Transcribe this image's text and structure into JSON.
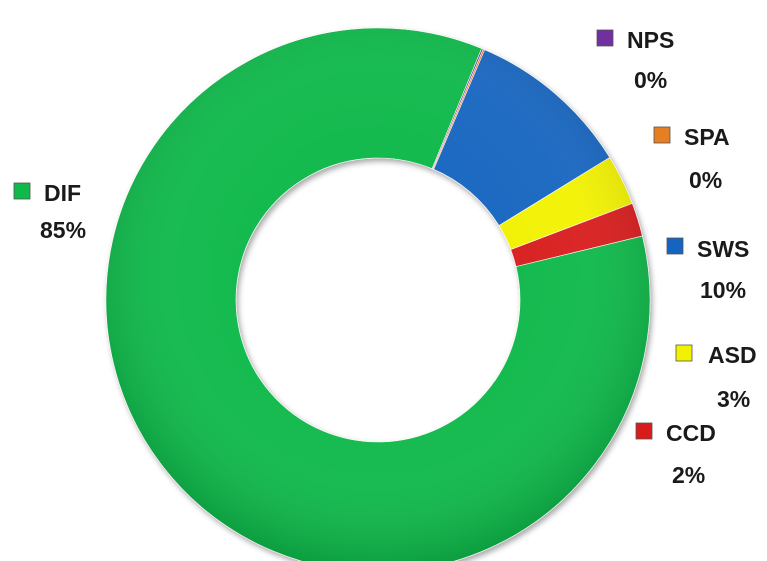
{
  "chart_data": {
    "type": "pie",
    "style": "doughnut",
    "legend_placement": "labels beside slices",
    "slices": [
      {
        "name": "DIF",
        "value": 85,
        "label": "85%",
        "color": "#11b84a"
      },
      {
        "name": "NPS",
        "value": 0,
        "label": "0%",
        "color": "#7030a0"
      },
      {
        "name": "SPA",
        "value": 0,
        "label": "0%",
        "color": "#e67e22"
      },
      {
        "name": "SWS",
        "value": 10,
        "label": "10%",
        "color": "#1565c0"
      },
      {
        "name": "ASD",
        "value": 3,
        "label": "3%",
        "color": "#f2f200"
      },
      {
        "name": "CCD",
        "value": 2,
        "label": "2%",
        "color": "#d81b1b"
      }
    ]
  }
}
